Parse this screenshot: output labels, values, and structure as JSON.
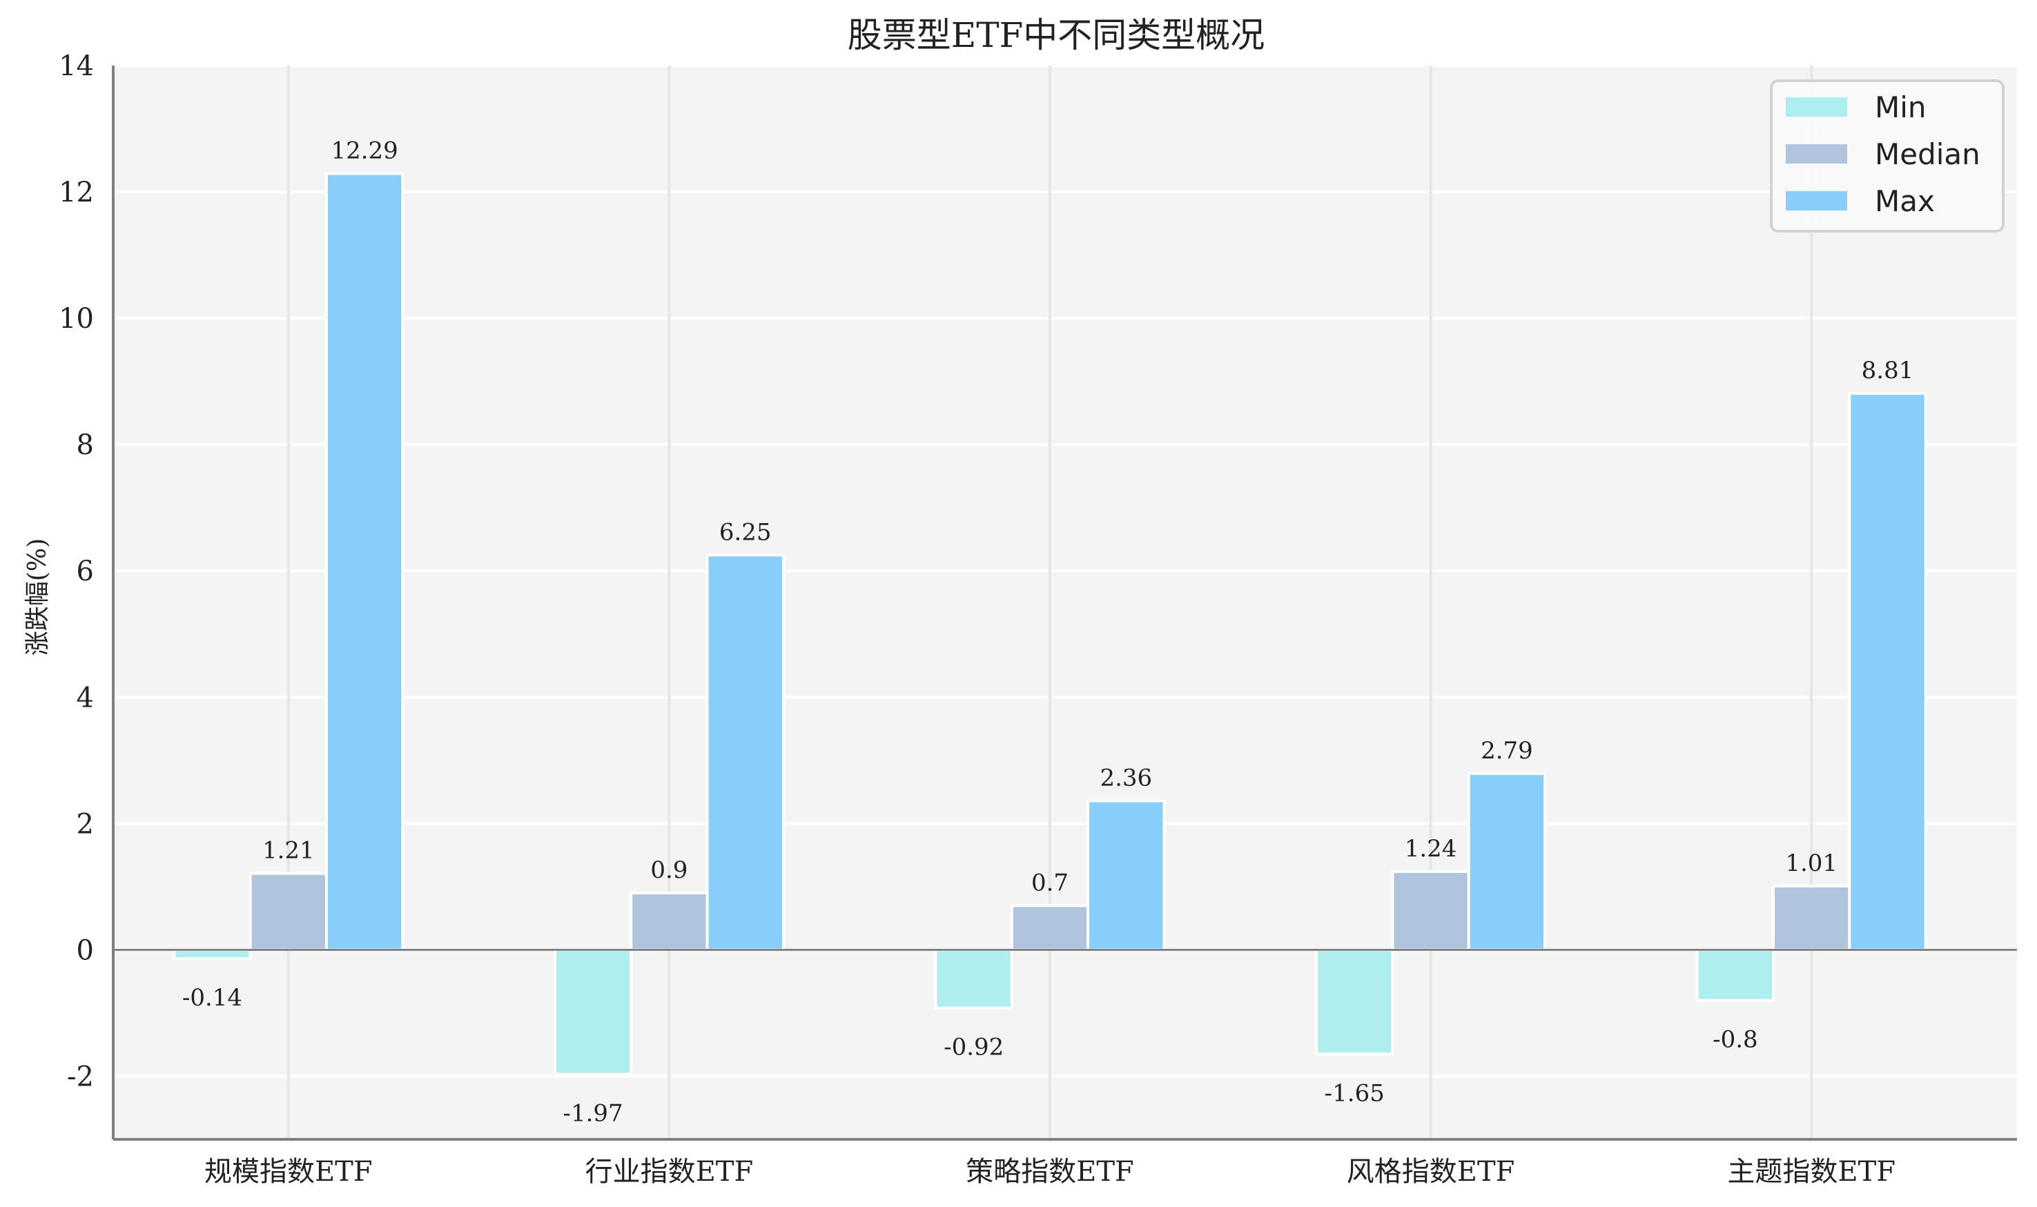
{
  "chart_data": {
    "type": "bar",
    "title": "股票型ETF中不同类型概况",
    "xlabel": "",
    "ylabel": "涨跌幅(%)",
    "ylim": [
      -3,
      14
    ],
    "yticks": [
      -2,
      0,
      2,
      4,
      6,
      8,
      10,
      12,
      14
    ],
    "ytick_labels": [
      "-2",
      "0",
      "2",
      "4",
      "6",
      "8",
      "10",
      "12",
      "14"
    ],
    "categories": [
      "规模指数ETF",
      "行业指数ETF",
      "策略指数ETF",
      "风格指数ETF",
      "主题指数ETF"
    ],
    "series": [
      {
        "name": "Min",
        "color": "#AFEEEE",
        "values": [
          -0.14,
          -1.97,
          -0.92,
          -1.65,
          -0.8
        ]
      },
      {
        "name": "Median",
        "color": "#B0C4DE",
        "values": [
          1.21,
          0.9,
          0.7,
          1.24,
          1.01
        ]
      },
      {
        "name": "Max",
        "color": "#87CEFA",
        "values": [
          12.29,
          6.25,
          2.36,
          2.79,
          8.81
        ]
      }
    ],
    "data_labels": [
      [
        "-0.14",
        "-1.97",
        "-0.92",
        "-1.65",
        "-0.8"
      ],
      [
        "1.21",
        "0.9",
        "0.7",
        "1.24",
        "1.01"
      ],
      [
        "12.29",
        "6.25",
        "2.36",
        "2.79",
        "8.81"
      ]
    ],
    "grid": true,
    "legend_position": "upper right",
    "background_color": "#F4F4F4",
    "zero_line": true
  },
  "legend": {
    "items": [
      {
        "label": "Min",
        "color": "#AFEEEE"
      },
      {
        "label": "Median",
        "color": "#B0C4DE"
      },
      {
        "label": "Max",
        "color": "#87CEFA"
      }
    ]
  }
}
